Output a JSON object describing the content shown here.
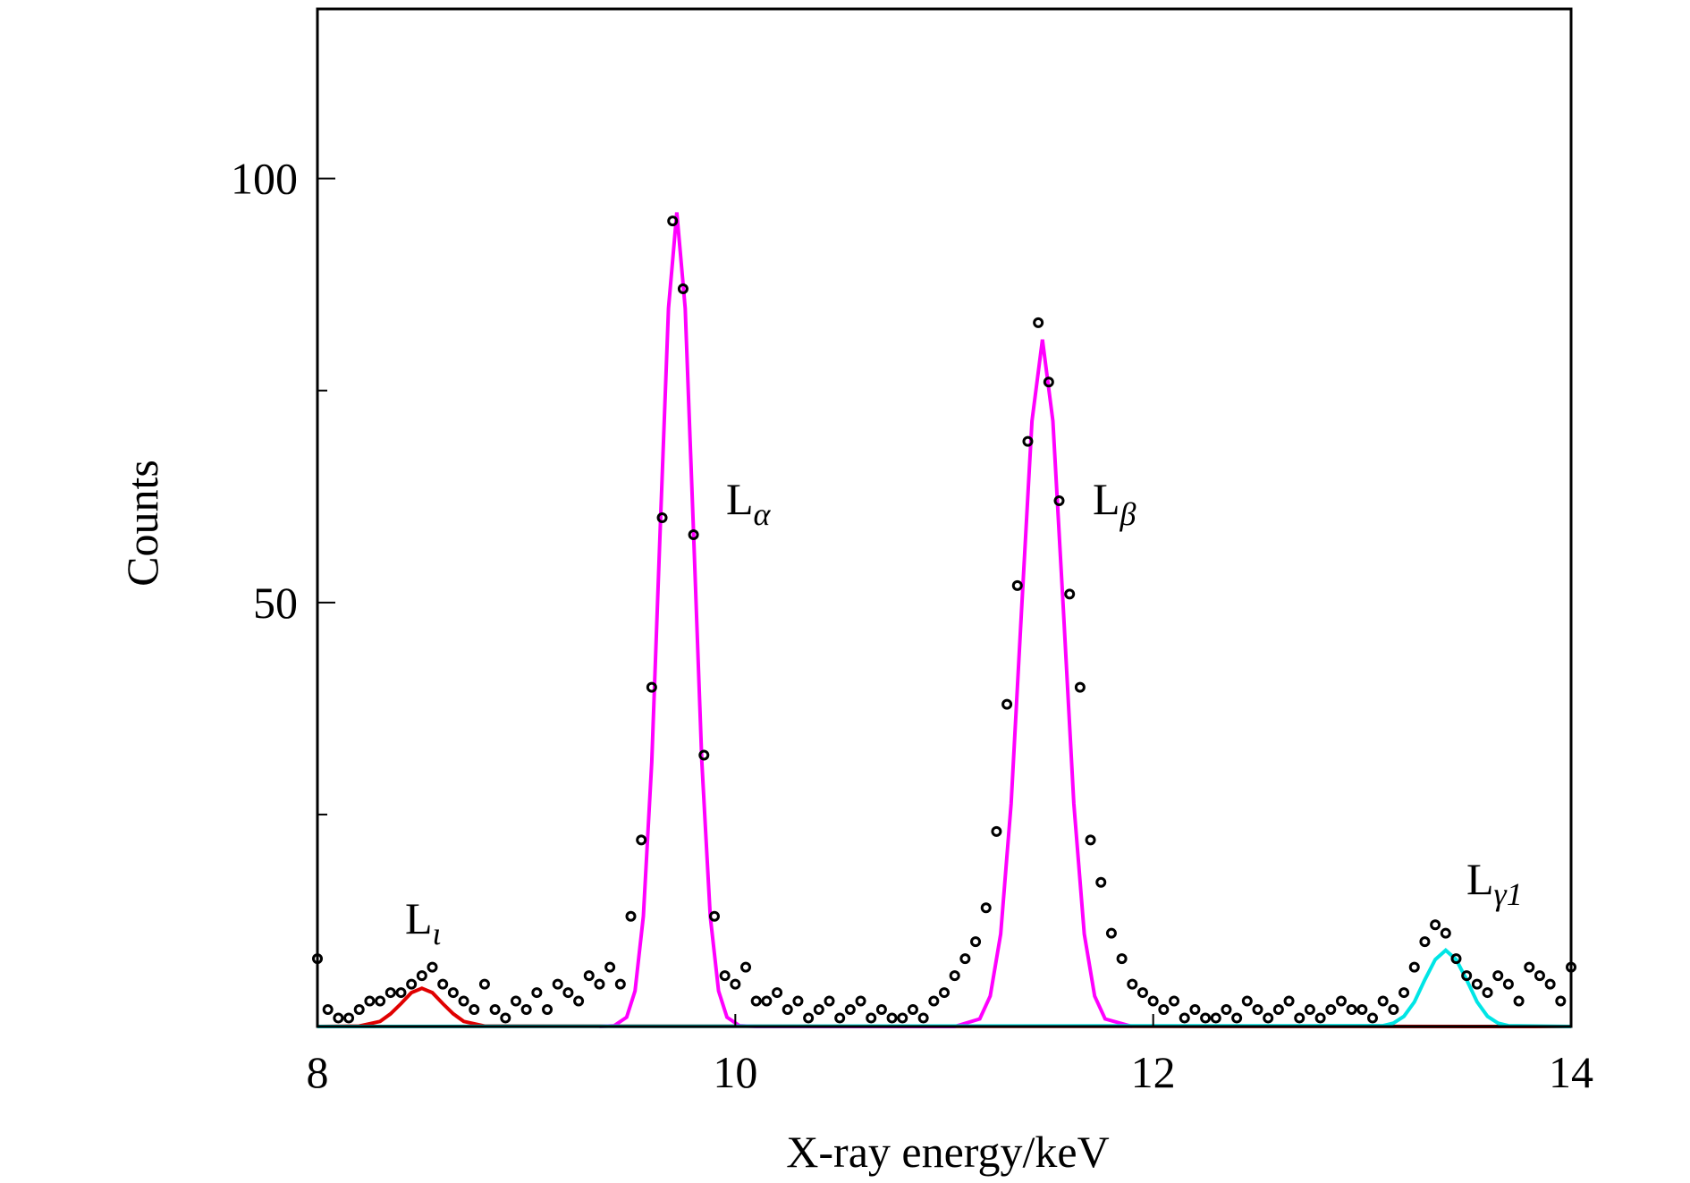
{
  "chart_data": {
    "type": "scatter",
    "x_label": "X-ray energy/keV",
    "y_label": "Counts",
    "xlim": [
      8,
      14
    ],
    "xticks": [
      8,
      10,
      12,
      14
    ],
    "ylim": [
      0,
      120
    ],
    "yticks": [
      50,
      100
    ],
    "yminorticks": [
      25,
      75
    ],
    "points": {
      "color": "#000000",
      "x": [
        8.0,
        8.05,
        8.1,
        8.15,
        8.2,
        8.25,
        8.3,
        8.35,
        8.4,
        8.45,
        8.5,
        8.55,
        8.6,
        8.65,
        8.7,
        8.75,
        8.8,
        8.85,
        8.9,
        8.95,
        9.0,
        9.05,
        9.1,
        9.15,
        9.2,
        9.25,
        9.3,
        9.35,
        9.4,
        9.45,
        9.5,
        9.55,
        9.6,
        9.65,
        9.7,
        9.75,
        9.8,
        9.85,
        9.9,
        9.95,
        10.0,
        10.05,
        10.1,
        10.15,
        10.2,
        10.25,
        10.3,
        10.35,
        10.4,
        10.45,
        10.5,
        10.55,
        10.6,
        10.65,
        10.7,
        10.75,
        10.8,
        10.85,
        10.9,
        10.95,
        11.0,
        11.05,
        11.1,
        11.15,
        11.2,
        11.25,
        11.3,
        11.35,
        11.4,
        11.45,
        11.5,
        11.55,
        11.6,
        11.65,
        11.7,
        11.75,
        11.8,
        11.85,
        11.9,
        11.95,
        12.0,
        12.05,
        12.1,
        12.15,
        12.2,
        12.25,
        12.3,
        12.35,
        12.4,
        12.45,
        12.5,
        12.55,
        12.6,
        12.65,
        12.7,
        12.75,
        12.8,
        12.85,
        12.9,
        12.95,
        13.0,
        13.05,
        13.1,
        13.15,
        13.2,
        13.25,
        13.3,
        13.35,
        13.4,
        13.45,
        13.5,
        13.55,
        13.6,
        13.65,
        13.7,
        13.75,
        13.8,
        13.85,
        13.9,
        13.95,
        14.0
      ],
      "values": [
        8,
        2,
        1,
        1,
        2,
        3,
        3,
        4,
        4,
        5,
        6,
        7,
        5,
        4,
        3,
        2,
        5,
        2,
        1,
        3,
        2,
        4,
        2,
        5,
        4,
        3,
        6,
        5,
        7,
        5,
        13,
        22,
        40,
        60,
        95,
        87,
        58,
        32,
        13,
        6,
        5,
        7,
        3,
        3,
        4,
        2,
        3,
        1,
        2,
        3,
        1,
        2,
        3,
        1,
        2,
        1,
        1,
        2,
        1,
        3,
        4,
        6,
        8,
        10,
        14,
        23,
        38,
        52,
        69,
        83,
        76,
        62,
        51,
        40,
        22,
        17,
        11,
        8,
        5,
        4,
        3,
        2,
        3,
        1,
        2,
        1,
        1,
        2,
        1,
        3,
        2,
        1,
        2,
        3,
        1,
        2,
        1,
        2,
        3,
        2,
        2,
        1,
        3,
        2,
        4,
        7,
        10,
        12,
        11,
        8,
        6,
        5,
        4,
        6,
        5,
        3,
        7,
        6,
        5,
        3,
        7
      ]
    },
    "series": [
      {
        "color": "#e00000",
        "x": [
          8,
          8.2,
          8.3,
          8.35,
          8.4,
          8.45,
          8.5,
          8.55,
          8.6,
          8.65,
          8.7,
          8.8,
          14
        ],
        "values": [
          0,
          0.05,
          0.6,
          1.5,
          2.7,
          4.0,
          4.5,
          4.0,
          2.7,
          1.5,
          0.6,
          0.05,
          0
        ]
      },
      {
        "color": "#ff00ff",
        "x": [
          9.35,
          9.42,
          9.48,
          9.52,
          9.56,
          9.6,
          9.64,
          9.68,
          9.72,
          9.76,
          9.8,
          9.84,
          9.88,
          9.92,
          9.96,
          10.02,
          10.1,
          11.05,
          11.17,
          11.22,
          11.27,
          11.32,
          11.37,
          11.42,
          11.47,
          11.52,
          11.57,
          11.62,
          11.67,
          11.72,
          11.77,
          11.9
        ],
        "values": [
          0,
          0.1,
          1.1,
          4.2,
          13.0,
          31.2,
          58.3,
          84.7,
          96,
          84.7,
          58.3,
          31.2,
          13.0,
          4.2,
          1.1,
          0.1,
          0,
          0,
          0.9,
          3.6,
          10.9,
          26.3,
          49.2,
          71.4,
          81,
          71.4,
          49.2,
          26.3,
          10.9,
          3.6,
          0.9,
          0
        ]
      },
      {
        "color": "#00e5e5",
        "x": [
          8,
          13.1,
          13.15,
          13.2,
          13.25,
          13.3,
          13.35,
          13.4,
          13.45,
          13.5,
          13.55,
          13.6,
          13.65,
          13.7,
          14
        ],
        "values": [
          0,
          0.1,
          0.4,
          1.2,
          2.9,
          5.5,
          7.9,
          9,
          7.9,
          5.5,
          2.9,
          1.2,
          0.4,
          0.1,
          0
        ]
      }
    ],
    "annotations": [
      {
        "base": "L",
        "sub": "ι"
      },
      {
        "base": "L",
        "sub": "α"
      },
      {
        "base": "L",
        "sub": "β"
      },
      {
        "base": "L",
        "sub": "γ1"
      }
    ]
  }
}
